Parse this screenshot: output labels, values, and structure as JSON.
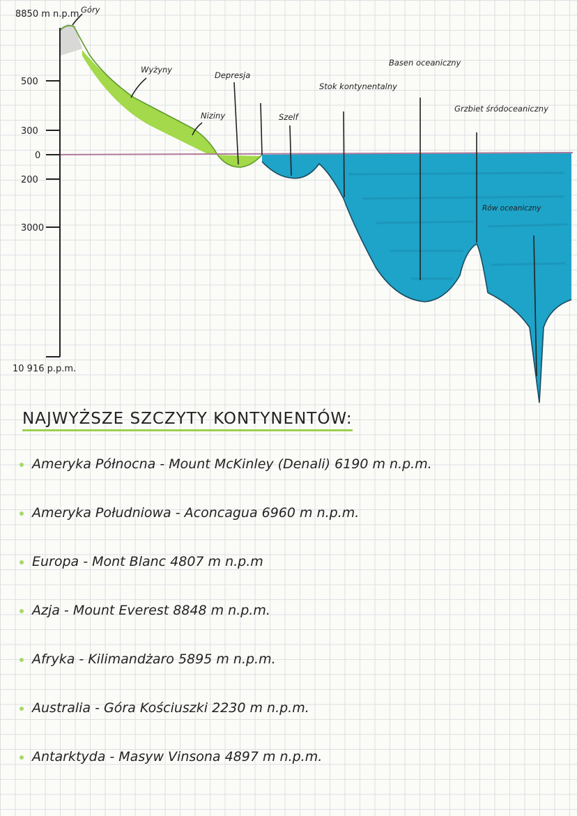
{
  "diagram": {
    "axis": {
      "top_label": "8850 m n.p.m",
      "ticks": [
        "500",
        "300",
        "0",
        "200",
        "3000"
      ],
      "bottom_label": "10 916 p.p.m."
    },
    "features": {
      "gory": "Góry",
      "wyzyny": "Wyżyny",
      "depresja": "Depresja",
      "niziny": "Niziny",
      "szelf": "Szelf",
      "stok": "Stok kontynentalny",
      "basen": "Basen oceaniczny",
      "grzbiet": "Grzbiet śródoceaniczny",
      "row": "Rów oceaniczny"
    },
    "colors": {
      "land": "#a3d94a",
      "land_shadow": "#5f9a2e",
      "mountain": "#d8d8d6",
      "ocean": "#1ea3c9",
      "ocean_dark": "#1781a3",
      "sea_level": "#b07a9a"
    }
  },
  "list": {
    "title": "NAJWYŻSZE SZCZYTY KONTYNENTÓW:",
    "items": [
      "Ameryka Północna - Mount McKinley (Denali) 6190 m n.p.m.",
      "Ameryka Południowa - Aconcagua 6960 m n.p.m.",
      "Europa - Mont Blanc 4807 m n.p.m",
      "Azja - Mount Everest 8848 m n.p.m.",
      "Afryka - Kilimandżaro 5895 m n.p.m.",
      "Australia - Góra Kościuszki 2230 m n.p.m.",
      "Antarktyda - Masyw Vinsona 4897 m n.p.m."
    ]
  }
}
